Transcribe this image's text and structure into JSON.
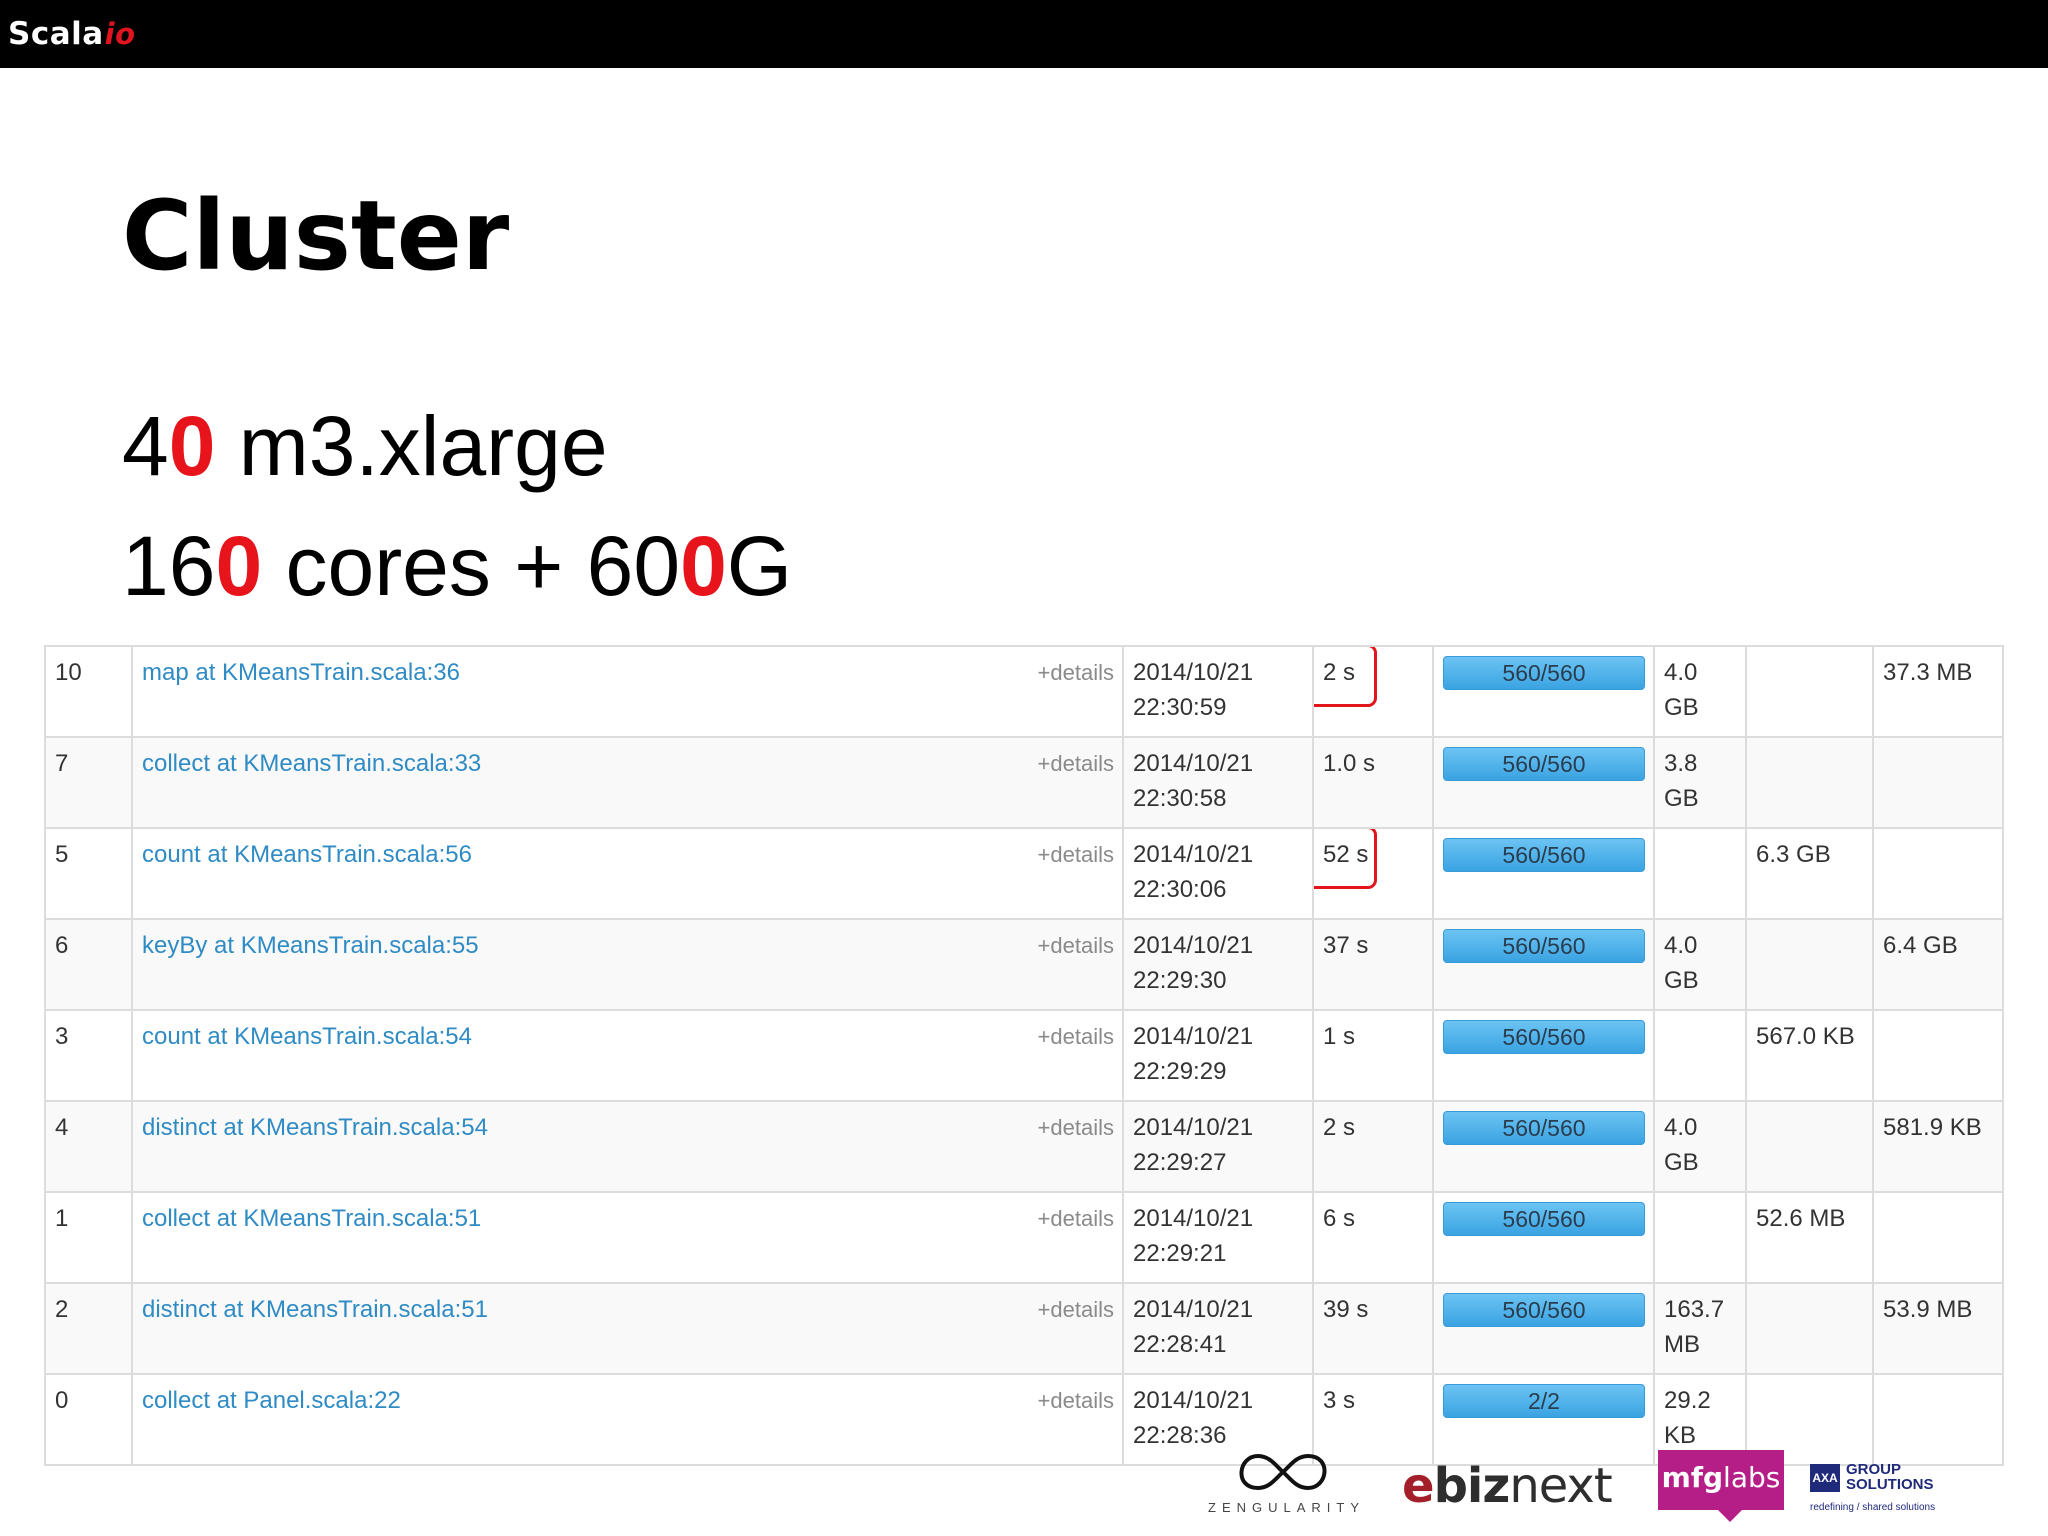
{
  "header": {
    "brand_text": "Scala",
    "brand_accent": "io"
  },
  "slide": {
    "title": "Cluster",
    "line1": {
      "a": "4",
      "b": "0",
      "c": " m3.xlarge"
    },
    "line2": {
      "a": "16",
      "b": "0",
      "c": " cores + 60",
      "d": "0",
      "e": "G"
    }
  },
  "table": {
    "details_label": "+details",
    "rows": [
      {
        "id": "10",
        "desc": "map at KMeansTrain.scala:36",
        "date": "2014/10/21",
        "time": "22:30:59",
        "duration": "2 s",
        "tasks": "560/560",
        "input": "4.0 GB",
        "shuffle_read": "",
        "shuffle_write": "37.3 MB",
        "highlight": true
      },
      {
        "id": "7",
        "desc": "collect at KMeansTrain.scala:33",
        "date": "2014/10/21",
        "time": "22:30:58",
        "duration": "1.0 s",
        "tasks": "560/560",
        "input": "3.8 GB",
        "shuffle_read": "",
        "shuffle_write": "",
        "highlight": false
      },
      {
        "id": "5",
        "desc": "count at KMeansTrain.scala:56",
        "date": "2014/10/21",
        "time": "22:30:06",
        "duration": "52 s",
        "tasks": "560/560",
        "input": "",
        "shuffle_read": "6.3 GB",
        "shuffle_write": "",
        "highlight": true
      },
      {
        "id": "6",
        "desc": "keyBy at KMeansTrain.scala:55",
        "date": "2014/10/21",
        "time": "22:29:30",
        "duration": "37 s",
        "tasks": "560/560",
        "input": "4.0 GB",
        "shuffle_read": "",
        "shuffle_write": "6.4 GB",
        "highlight": false
      },
      {
        "id": "3",
        "desc": "count at KMeansTrain.scala:54",
        "date": "2014/10/21",
        "time": "22:29:29",
        "duration": "1 s",
        "tasks": "560/560",
        "input": "",
        "shuffle_read": "567.0 KB",
        "shuffle_write": "",
        "highlight": false
      },
      {
        "id": "4",
        "desc": "distinct at KMeansTrain.scala:54",
        "date": "2014/10/21",
        "time": "22:29:27",
        "duration": "2 s",
        "tasks": "560/560",
        "input": "4.0 GB",
        "shuffle_read": "",
        "shuffle_write": "581.9 KB",
        "highlight": false
      },
      {
        "id": "1",
        "desc": "collect at KMeansTrain.scala:51",
        "date": "2014/10/21",
        "time": "22:29:21",
        "duration": "6 s",
        "tasks": "560/560",
        "input": "",
        "shuffle_read": "52.6 MB",
        "shuffle_write": "",
        "highlight": false
      },
      {
        "id": "2",
        "desc": "distinct at KMeansTrain.scala:51",
        "date": "2014/10/21",
        "time": "22:28:41",
        "duration": "39 s",
        "tasks": "560/560",
        "input": "163.7 MB",
        "shuffle_read": "",
        "shuffle_write": "53.9 MB",
        "highlight": false
      },
      {
        "id": "0",
        "desc": "collect at Panel.scala:22",
        "date": "2014/10/21",
        "time": "22:28:36",
        "duration": "3 s",
        "tasks": "2/2",
        "input": "29.2 KB",
        "shuffle_read": "",
        "shuffle_write": "",
        "highlight": false
      }
    ]
  },
  "sponsors": {
    "zengularity": "ZENGULARITY",
    "ebiznext": {
      "a": "e",
      "b": "biz",
      "c": "next"
    },
    "mfglabs": {
      "a": "mfg",
      "b": "labs"
    },
    "axa": {
      "logo": "AXA",
      "line1": "GROUP",
      "line2": "SOLUTIONS",
      "tagline": "redefining / shared solutions"
    }
  },
  "colors": {
    "accent_red": "#e8141c",
    "link_blue": "#2f8bc4",
    "bar_blue": "#3aa3e2"
  }
}
